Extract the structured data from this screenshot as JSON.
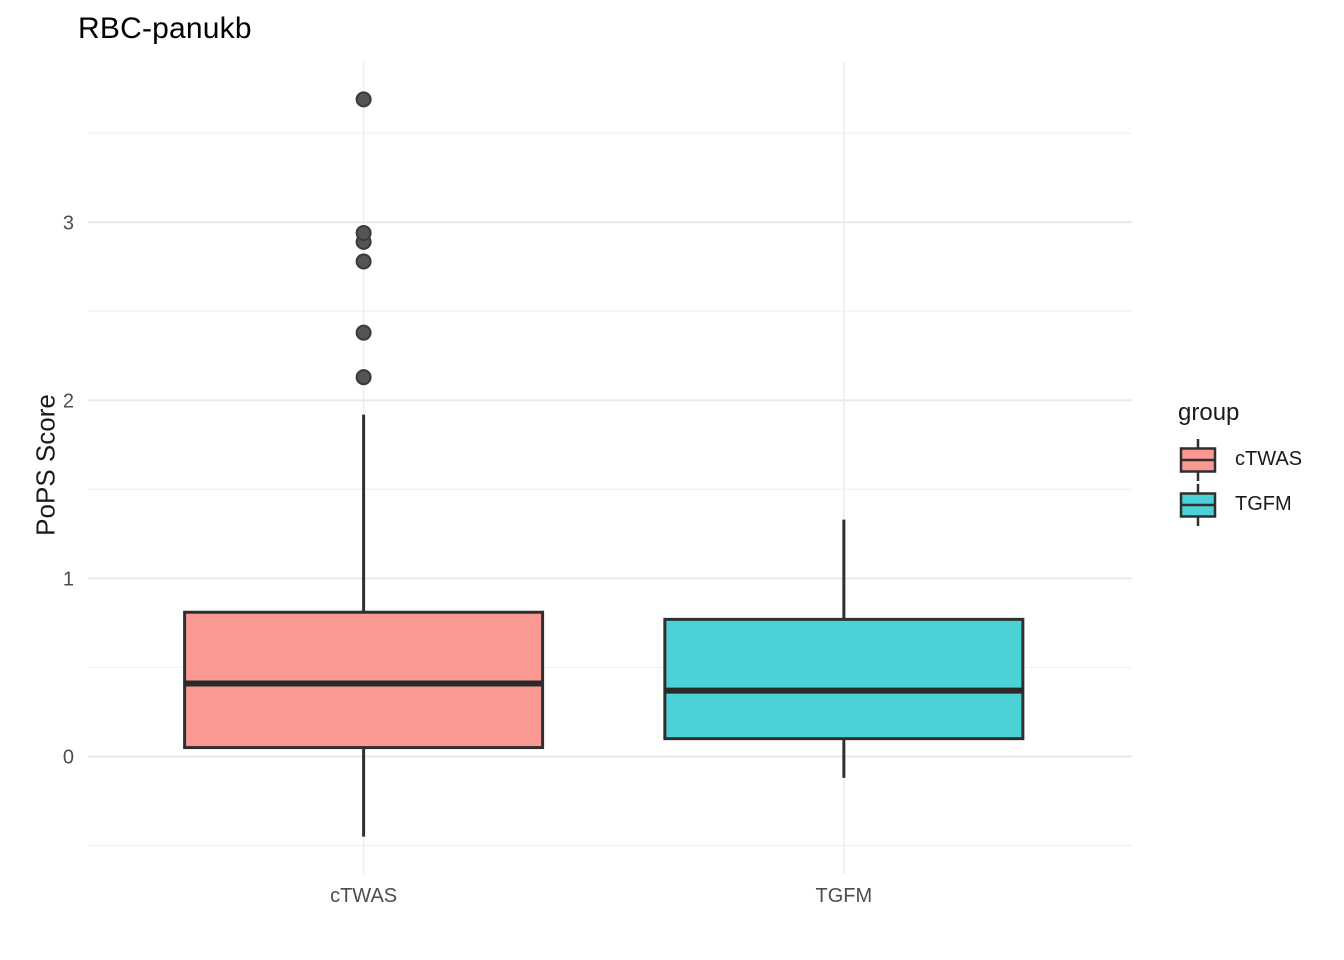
{
  "figure": {
    "background": "#ffffff"
  },
  "chart_data": {
    "type": "boxplot",
    "title": "RBC-panukb",
    "xlabel": "",
    "ylabel": "PoPS Score",
    "categories": [
      "cTWAS",
      "TGFM"
    ],
    "ylim": [
      -0.66,
      3.9
    ],
    "yticks": [
      0,
      1,
      2,
      3
    ],
    "minor_gridlines": [
      -0.5,
      0.5,
      1.5,
      2.5,
      3.5
    ],
    "grid": true,
    "legend": {
      "title": "group",
      "position": "right",
      "entries": [
        {
          "label": "cTWAS",
          "fill": "#FA9992"
        },
        {
          "label": "TGFM",
          "fill": "#4CD2D6"
        }
      ]
    },
    "series": [
      {
        "name": "cTWAS",
        "fill": "#FA9992",
        "stats": {
          "whisker_low": -0.45,
          "q1": 0.05,
          "median": 0.41,
          "q3": 0.81,
          "whisker_high": 1.92
        },
        "outliers": [
          2.13,
          2.38,
          2.78,
          2.89,
          2.94,
          3.69
        ]
      },
      {
        "name": "TGFM",
        "fill": "#4CD2D6",
        "stats": {
          "whisker_low": -0.12,
          "q1": 0.1,
          "median": 0.37,
          "q3": 0.77,
          "whisker_high": 1.33
        },
        "outliers": []
      }
    ],
    "colors": {
      "box_stroke": "#2F2F2F",
      "median": "#2A2A2A",
      "whisker": "#2F2F2F",
      "outlier_fill": "#545454",
      "outlier_stroke": "#3A3A3A",
      "grid_major": "#E9E9E9",
      "grid_minor": "#F3F3F3",
      "grid_vertical": "#EDEDED",
      "axis_text": "#4D4D4D",
      "title_text": "#000000"
    }
  }
}
